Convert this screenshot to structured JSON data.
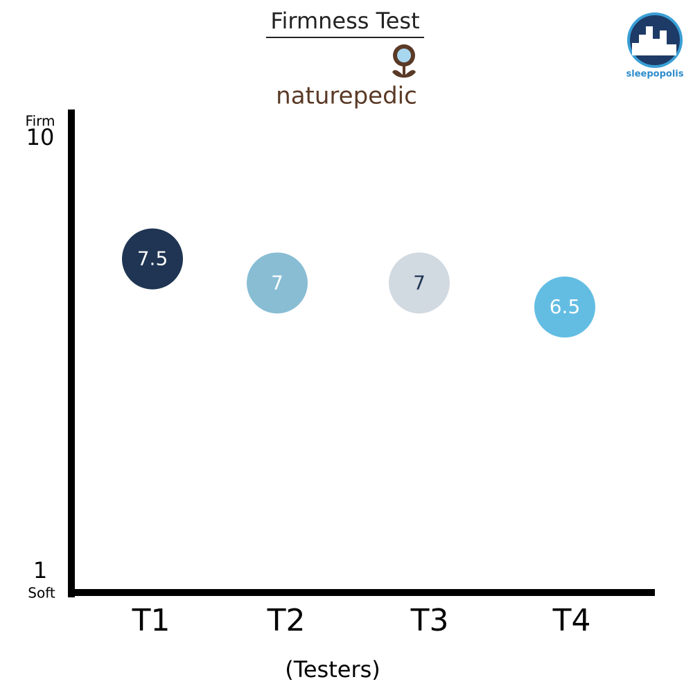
{
  "chart_data": {
    "type": "bubble",
    "title": "Firmness Test",
    "brand": "naturepedic",
    "publisher": "sleepopolis",
    "x_label": "(Testers)",
    "y_top_label": "Firm",
    "y_bottom_label": "Soft",
    "categories": [
      "T1",
      "T2",
      "T3",
      "T4"
    ],
    "values": [
      7.5,
      7,
      7,
      6.5
    ],
    "colors": [
      "#1f3553",
      "#88bdd4",
      "#d1d9e1",
      "#63bde3"
    ],
    "label_colors": [
      "#ffffff",
      "#ffffff",
      "#1f3553",
      "#ffffff"
    ],
    "ylim": [
      1,
      10
    ],
    "yticks": [
      1,
      10
    ]
  }
}
